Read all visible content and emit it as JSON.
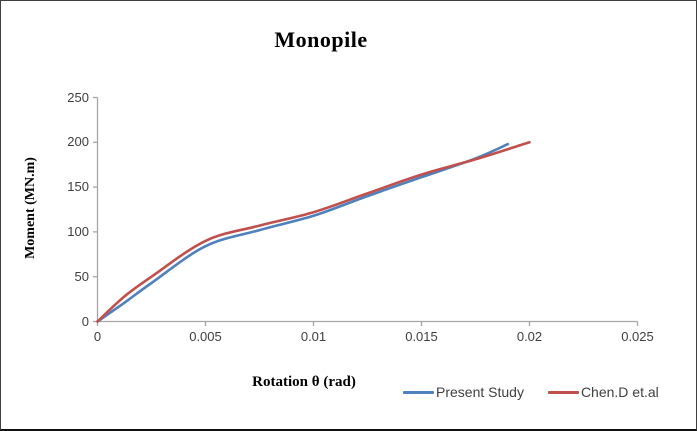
{
  "frame": {
    "background": "#ffffff",
    "border_color": "#3f3f3f"
  },
  "chart_data": {
    "type": "line",
    "title": "Monopile",
    "xlabel": "Rotation θ (rad)",
    "ylabel": "Moment (MN.m)",
    "xlim": [
      0,
      0.025
    ],
    "ylim": [
      0,
      250
    ],
    "grid": false,
    "axis_color": "#a6a6a6",
    "tick_text_color": "#404040",
    "legend_position": "bottom-right",
    "x_tick_values": [
      0,
      0.005,
      0.01,
      0.015,
      0.02,
      0.025
    ],
    "x_tick_labels": [
      "0",
      "0.005",
      "0.01",
      "0.015",
      "0.02",
      "0.025"
    ],
    "y_tick_values": [
      0,
      50,
      100,
      150,
      200,
      250
    ],
    "y_tick_labels": [
      "0",
      "50",
      "100",
      "150",
      "200",
      "250"
    ],
    "series": [
      {
        "name": "Present Study",
        "color": "#4F81BD",
        "x": [
          0,
          0.00125,
          0.0025,
          0.005,
          0.0075,
          0.01,
          0.0125,
          0.015,
          0.0175,
          0.019
        ],
        "y": [
          0,
          21,
          43,
          84,
          102,
          118,
          140,
          161,
          182,
          198
        ]
      },
      {
        "name": "Chen.D et.al",
        "color": "#C0504D",
        "x": [
          0,
          0.00125,
          0.0025,
          0.005,
          0.0075,
          0.01,
          0.0125,
          0.015,
          0.0175,
          0.02
        ],
        "y": [
          0,
          28,
          50,
          90,
          107,
          122,
          143,
          164,
          181,
          200
        ]
      }
    ]
  }
}
